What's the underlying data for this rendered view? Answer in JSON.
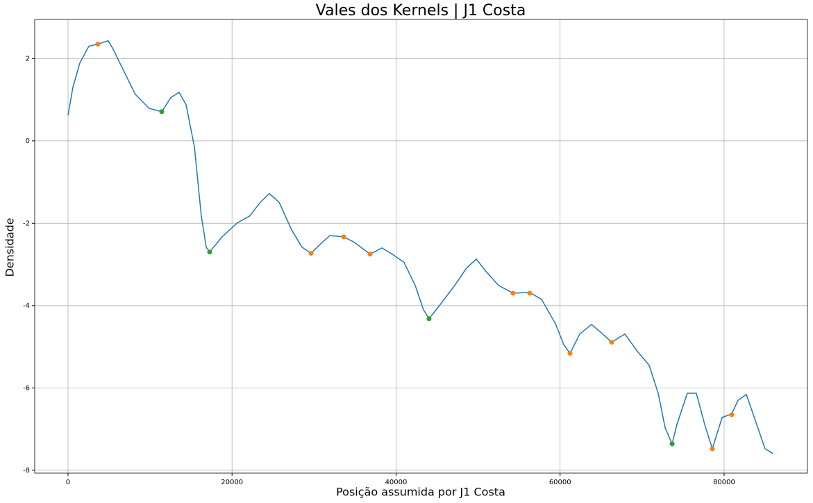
{
  "chart_data": {
    "type": "line",
    "title": "Vales dos Kernels | J1 Costa",
    "xlabel": "Posição assumida por J1 Costa",
    "ylabel": "Densidade",
    "xlim": [
      -4060,
      90160
    ],
    "ylim": [
      -8.07,
      2.95
    ],
    "xticks": [
      0,
      20000,
      40000,
      60000,
      80000
    ],
    "yticks": [
      -8,
      -6,
      -4,
      -2,
      0,
      2
    ],
    "grid": true,
    "series": [
      {
        "style": "line",
        "color": "#1f77b4",
        "x": [
          0,
          593,
          1439,
          2540,
          3640,
          4400,
          4910,
          5500,
          6520,
          8210,
          9900,
          11430,
          12530,
          13540,
          14390,
          15410,
          16250,
          16850,
          17270,
          18790,
          20650,
          22180,
          23450,
          24550,
          25740,
          27260,
          28530,
          29630,
          30810,
          31920,
          33610,
          34880,
          36830,
          38270,
          39530,
          40970,
          42330,
          43340,
          44020,
          45210,
          47150,
          48590,
          49780,
          50960,
          52490,
          54260,
          56300,
          57740,
          59430,
          60450,
          61210,
          62400,
          63830,
          65020,
          66290,
          67900,
          69420,
          70860,
          71960,
          72810,
          73660,
          74240,
          75510,
          76610,
          77630,
          78560,
          79750,
          80930,
          81700,
          82710,
          83980,
          84990,
          85930
        ],
        "values": [
          0.62,
          1.3,
          1.89,
          2.3,
          2.35,
          2.4,
          2.43,
          2.23,
          1.81,
          1.13,
          0.79,
          0.71,
          1.05,
          1.18,
          0.88,
          -0.14,
          -1.82,
          -2.58,
          -2.7,
          -2.33,
          -1.99,
          -1.82,
          -1.49,
          -1.28,
          -1.49,
          -2.16,
          -2.58,
          -2.73,
          -2.5,
          -2.3,
          -2.33,
          -2.46,
          -2.75,
          -2.6,
          -2.75,
          -2.95,
          -3.51,
          -4.1,
          -4.32,
          -4.02,
          -3.51,
          -3.09,
          -2.87,
          -3.17,
          -3.51,
          -3.7,
          -3.68,
          -3.85,
          -4.44,
          -4.95,
          -5.16,
          -4.69,
          -4.46,
          -4.66,
          -4.89,
          -4.69,
          -5.11,
          -5.45,
          -6.13,
          -6.97,
          -7.36,
          -6.89,
          -6.13,
          -6.13,
          -6.89,
          -7.48,
          -6.72,
          -6.63,
          -6.3,
          -6.16,
          -6.89,
          -7.48,
          -7.59
        ]
      },
      {
        "style": "points",
        "color": "#ff7f0e",
        "x": [
          3640,
          29630,
          33610,
          36830,
          54260,
          56300,
          61210,
          66290,
          78560,
          80930
        ],
        "values": [
          2.35,
          -2.73,
          -2.33,
          -2.75,
          -3.7,
          -3.7,
          -5.16,
          -4.89,
          -7.48,
          -6.65
        ]
      },
      {
        "style": "points",
        "color": "#2ca02c",
        "x": [
          11430,
          17270,
          44020,
          73660
        ],
        "values": [
          0.71,
          -2.7,
          -4.32,
          -7.36
        ]
      }
    ]
  }
}
